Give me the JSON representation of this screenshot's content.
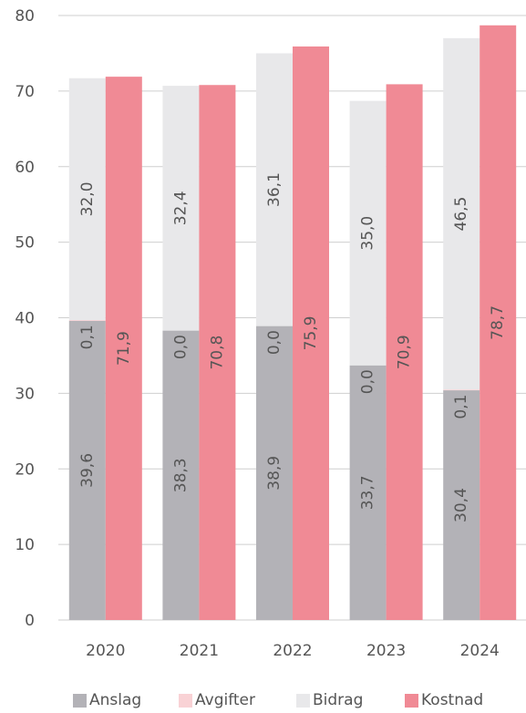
{
  "chart_data": {
    "type": "bar",
    "categories": [
      "2020",
      "2021",
      "2022",
      "2023",
      "2024"
    ],
    "ylim": [
      0,
      80
    ],
    "yticks": [
      0,
      10,
      20,
      30,
      40,
      50,
      60,
      70,
      80
    ],
    "grid": true,
    "legend_position": "bottom",
    "stacked_series": [
      {
        "name": "Anslag",
        "color": "#b3b2b7",
        "values": [
          39.6,
          38.3,
          38.9,
          33.7,
          30.4
        ],
        "labels": [
          "39,6",
          "38,3",
          "38,9",
          "33,7",
          "30,4"
        ]
      },
      {
        "name": "Avgifter",
        "color": "#f9d2d5",
        "values": [
          0.1,
          0.0,
          0.0,
          0.0,
          0.1
        ],
        "labels": [
          "0,1",
          "0,0",
          "0,0",
          "0,0",
          "0,1"
        ]
      },
      {
        "name": "Bidrag",
        "color": "#e8e8ea",
        "values": [
          32.0,
          32.4,
          36.1,
          35.0,
          46.5
        ],
        "labels": [
          "32,0",
          "32,4",
          "36,1",
          "35,0",
          "46,5"
        ]
      }
    ],
    "single_series": [
      {
        "name": "Kostnad",
        "color": "#f08a95",
        "values": [
          71.9,
          70.8,
          75.9,
          70.9,
          78.7
        ],
        "labels": [
          "71,9",
          "70,8",
          "75,9",
          "70,9",
          "78,7"
        ]
      }
    ]
  },
  "legend": [
    {
      "name": "Anslag",
      "color": "#b3b2b7"
    },
    {
      "name": "Avgifter",
      "color": "#f9d2d5"
    },
    {
      "name": "Bidrag",
      "color": "#e8e8ea"
    },
    {
      "name": "Kostnad",
      "color": "#f08a95"
    }
  ]
}
